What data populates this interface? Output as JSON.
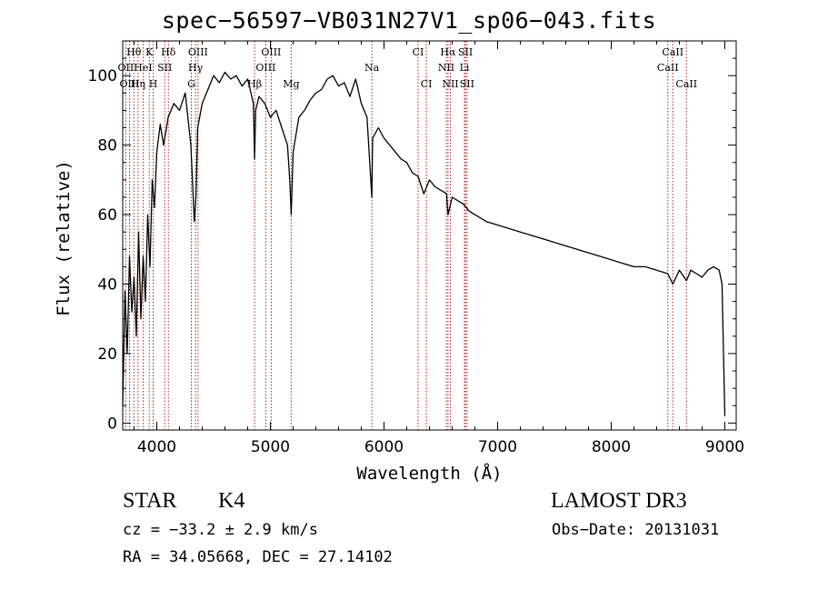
{
  "chart_data": {
    "type": "line",
    "title": "spec−56597−VB031N27V1_sp06−043.fits",
    "xlabel": "Wavelength (Å)",
    "ylabel": "Flux (relative)",
    "xlim": [
      3700,
      9100
    ],
    "ylim": [
      -2,
      110
    ],
    "xticks": [
      4000,
      5000,
      6000,
      7000,
      8000,
      9000
    ],
    "yticks": [
      0,
      20,
      40,
      60,
      80,
      100
    ],
    "grid": false,
    "series": [
      {
        "name": "spectrum",
        "x": [
          3700,
          3720,
          3740,
          3760,
          3780,
          3800,
          3820,
          3840,
          3860,
          3880,
          3900,
          3920,
          3940,
          3960,
          3980,
          4000,
          4030,
          4060,
          4100,
          4150,
          4200,
          4250,
          4300,
          4330,
          4345,
          4360,
          4400,
          4450,
          4500,
          4550,
          4600,
          4650,
          4700,
          4750,
          4800,
          4850,
          4861,
          4870,
          4900,
          4950,
          5000,
          5050,
          5100,
          5150,
          5170,
          5183,
          5200,
          5250,
          5300,
          5350,
          5400,
          5450,
          5500,
          5550,
          5600,
          5650,
          5700,
          5750,
          5800,
          5850,
          5893,
          5900,
          5950,
          6000,
          6050,
          6100,
          6150,
          6200,
          6250,
          6300,
          6350,
          6400,
          6450,
          6500,
          6550,
          6563,
          6600,
          6650,
          6700,
          6750,
          6800,
          6900,
          7000,
          7100,
          7200,
          7300,
          7400,
          7500,
          7600,
          7700,
          7800,
          7900,
          8000,
          8100,
          8200,
          8300,
          8400,
          8498,
          8542,
          8600,
          8662,
          8700,
          8750,
          8800,
          8850,
          8900,
          8950,
          8975,
          9000
        ],
        "y": [
          5,
          38,
          20,
          48,
          32,
          42,
          25,
          55,
          30,
          48,
          35,
          60,
          45,
          70,
          62,
          78,
          86,
          80,
          88,
          92,
          90,
          95,
          80,
          58,
          65,
          85,
          92,
          96,
          100,
          98,
          101,
          99,
          100,
          97,
          99,
          92,
          76,
          90,
          94,
          92,
          88,
          90,
          85,
          80,
          70,
          60,
          78,
          88,
          90,
          93,
          95,
          96,
          99,
          100,
          97,
          98,
          94,
          99,
          92,
          88,
          65,
          82,
          85,
          82,
          80,
          78,
          76,
          75,
          72,
          71,
          66,
          70,
          68,
          67,
          66,
          60,
          65,
          64,
          63,
          61,
          60,
          58,
          57,
          56,
          55,
          54,
          53,
          52,
          51,
          50,
          49,
          48,
          47,
          46,
          45,
          45,
          44,
          43,
          40,
          44,
          41,
          44,
          43,
          42,
          44,
          45,
          44,
          40,
          2
        ]
      }
    ],
    "line_labels": [
      {
        "label": "Hθ",
        "x": 3798,
        "row": 0
      },
      {
        "label": "K",
        "x": 3934,
        "row": 0
      },
      {
        "label": "Hδ",
        "x": 4102,
        "row": 0
      },
      {
        "label": "OIII",
        "x": 4363,
        "row": 0
      },
      {
        "label": "OIII",
        "x": 5007,
        "row": 0
      },
      {
        "label": "CI",
        "x": 6300,
        "row": 0
      },
      {
        "label": "Hα",
        "x": 6563,
        "row": 0
      },
      {
        "label": "SII",
        "x": 6717,
        "row": 0
      },
      {
        "label": "CaII",
        "x": 8542,
        "row": 0
      },
      {
        "label": "OII",
        "x": 3727,
        "row": 1
      },
      {
        "label": "HeI",
        "x": 3880,
        "row": 1
      },
      {
        "label": "SII",
        "x": 4070,
        "row": 1
      },
      {
        "label": "Hγ",
        "x": 4341,
        "row": 1
      },
      {
        "label": "OIII",
        "x": 4959,
        "row": 1
      },
      {
        "label": "Na",
        "x": 5893,
        "row": 1
      },
      {
        "label": "NII",
        "x": 6548,
        "row": 1
      },
      {
        "label": "Li",
        "x": 6708,
        "row": 1
      },
      {
        "label": "CaII",
        "x": 8498,
        "row": 1
      },
      {
        "label": "OIII",
        "x": 3760,
        "row": 2
      },
      {
        "label": "Hη",
        "x": 3835,
        "row": 2
      },
      {
        "label": "H",
        "x": 3968,
        "row": 2
      },
      {
        "label": "G",
        "x": 4304,
        "row": 2
      },
      {
        "label": "Hβ",
        "x": 4861,
        "row": 2
      },
      {
        "label": "Mg",
        "x": 5183,
        "row": 2
      },
      {
        "label": "CI",
        "x": 6373,
        "row": 2
      },
      {
        "label": "NII",
        "x": 6584,
        "row": 2
      },
      {
        "label": "SII",
        "x": 6731,
        "row": 2
      },
      {
        "label": "CaII",
        "x": 8662,
        "row": 2
      }
    ],
    "line_positions": [
      3727,
      3760,
      3798,
      3835,
      3880,
      3934,
      3968,
      4070,
      4102,
      4304,
      4341,
      4363,
      4861,
      4959,
      5007,
      5183,
      5893,
      6300,
      6373,
      6548,
      6563,
      6584,
      6708,
      6717,
      6731,
      8498,
      8542,
      8662
    ]
  },
  "info": {
    "object_class": "STAR",
    "subclass": "K4",
    "survey": "LAMOST DR3",
    "cz": "cz = −33.2 ± 2.9 km/s",
    "obs_date": "Obs−Date: 20131031",
    "coords": "RA =  34.05668, DEC =  27.14102"
  },
  "colors": {
    "line_marker": "#b22222",
    "spectrum": "#000000"
  }
}
